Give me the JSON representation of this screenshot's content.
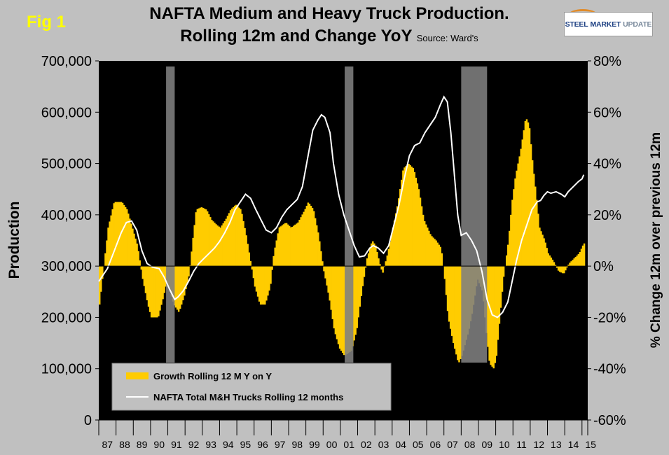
{
  "fig_label": "Fig 1",
  "title_line1": "NAFTA Medium and Heavy Truck Production.",
  "title_line2": "Rolling 12m and Change YoY",
  "source": "Source: Ward's",
  "logo": {
    "word1": "STEEL",
    "word2": "MARKET",
    "word3": "UPDATE"
  },
  "colors": {
    "bars": "#ffcc00",
    "line": "#ffffff",
    "plot_bg": "#000000",
    "page_bg": "#c0c0c0",
    "recession": "#808080"
  },
  "chart_data": {
    "type": "bar",
    "title": "NAFTA Medium and Heavy Truck Production. Rolling 12m and Change YoY",
    "left_axis": {
      "label": "Production",
      "range": [
        0,
        700000
      ],
      "ticks": [
        "0",
        "100,000",
        "200,000",
        "300,000",
        "400,000",
        "500,000",
        "600,000",
        "700,000"
      ]
    },
    "right_axis": {
      "label": "% Change 12m over previous 12m",
      "range": [
        -60,
        80
      ],
      "ticks": [
        "-60%",
        "-40%",
        "-20%",
        "0%",
        "20%",
        "40%",
        "60%",
        "80%"
      ]
    },
    "x_ticks": [
      "87",
      "88",
      "89",
      "90",
      "91",
      "92",
      "93",
      "94",
      "95",
      "96",
      "97",
      "98",
      "99",
      "00",
      "01",
      "02",
      "03",
      "04",
      "05",
      "06",
      "07",
      "08",
      "09",
      "10",
      "11",
      "12",
      "13",
      "14",
      "15"
    ],
    "recession_bands": [
      {
        "start": 1990.9,
        "end": 1991.4
      },
      {
        "start": 2001.25,
        "end": 2001.75
      },
      {
        "start": 2008.0,
        "end": 2009.5
      }
    ],
    "series": [
      {
        "name": "Growth Rolling 12 M Y on Y",
        "kind": "bar",
        "axis": "right",
        "points": [
          [
            1987.0,
            -15
          ],
          [
            1987.5,
            15
          ],
          [
            1987.85,
            25
          ],
          [
            1988.3,
            25
          ],
          [
            1988.6,
            22
          ],
          [
            1988.9,
            15
          ],
          [
            1989.2,
            8
          ],
          [
            1989.5,
            -5
          ],
          [
            1989.8,
            -15
          ],
          [
            1990.0,
            -20
          ],
          [
            1990.4,
            -20
          ],
          [
            1990.7,
            -12
          ],
          [
            1990.9,
            -6
          ],
          [
            1991.0,
            -8
          ],
          [
            1991.3,
            -15
          ],
          [
            1991.6,
            -18
          ],
          [
            1991.9,
            -12
          ],
          [
            1992.2,
            -3
          ],
          [
            1992.4,
            10
          ],
          [
            1992.6,
            22
          ],
          [
            1992.9,
            23
          ],
          [
            1993.2,
            22
          ],
          [
            1993.5,
            18
          ],
          [
            1993.8,
            16
          ],
          [
            1994.0,
            15
          ],
          [
            1994.3,
            18
          ],
          [
            1994.6,
            22
          ],
          [
            1994.9,
            24
          ],
          [
            1995.2,
            22
          ],
          [
            1995.5,
            12
          ],
          [
            1995.8,
            0
          ],
          [
            1996.0,
            -8
          ],
          [
            1996.3,
            -15
          ],
          [
            1996.6,
            -15
          ],
          [
            1996.9,
            -8
          ],
          [
            1997.1,
            5
          ],
          [
            1997.4,
            15
          ],
          [
            1997.8,
            17
          ],
          [
            1998.1,
            15
          ],
          [
            1998.5,
            17
          ],
          [
            1998.9,
            22
          ],
          [
            1999.1,
            25
          ],
          [
            1999.4,
            22
          ],
          [
            1999.7,
            12
          ],
          [
            2000.0,
            -2
          ],
          [
            2000.3,
            -12
          ],
          [
            2000.6,
            -25
          ],
          [
            2000.9,
            -32
          ],
          [
            2001.2,
            -35
          ],
          [
            2001.6,
            -33
          ],
          [
            2001.9,
            -25
          ],
          [
            2002.2,
            -10
          ],
          [
            2002.5,
            3
          ],
          [
            2002.8,
            10
          ],
          [
            2003.0,
            8
          ],
          [
            2003.2,
            2
          ],
          [
            2003.4,
            -3
          ],
          [
            2003.7,
            5
          ],
          [
            2004.0,
            15
          ],
          [
            2004.3,
            25
          ],
          [
            2004.6,
            38
          ],
          [
            2004.9,
            40
          ],
          [
            2005.2,
            38
          ],
          [
            2005.5,
            30
          ],
          [
            2005.8,
            18
          ],
          [
            2006.2,
            12
          ],
          [
            2006.5,
            10
          ],
          [
            2006.8,
            7
          ],
          [
            2007.0,
            -5
          ],
          [
            2007.2,
            -20
          ],
          [
            2007.5,
            -30
          ],
          [
            2007.8,
            -38
          ],
          [
            2008.0,
            -35
          ],
          [
            2008.2,
            -30
          ],
          [
            2008.4,
            -25
          ],
          [
            2008.6,
            -18
          ],
          [
            2008.9,
            -5
          ],
          [
            2009.2,
            -10
          ],
          [
            2009.4,
            -25
          ],
          [
            2009.6,
            -38
          ],
          [
            2009.85,
            -40
          ],
          [
            2010.0,
            -35
          ],
          [
            2010.2,
            -20
          ],
          [
            2010.4,
            -5
          ],
          [
            2010.7,
            10
          ],
          [
            2010.9,
            25
          ],
          [
            2011.1,
            35
          ],
          [
            2011.4,
            45
          ],
          [
            2011.7,
            58
          ],
          [
            2011.9,
            55
          ],
          [
            2012.1,
            40
          ],
          [
            2012.3,
            28
          ],
          [
            2012.5,
            15
          ],
          [
            2012.8,
            10
          ],
          [
            2013.0,
            5
          ],
          [
            2013.3,
            2
          ],
          [
            2013.6,
            -2
          ],
          [
            2013.9,
            -3
          ],
          [
            2014.2,
            1
          ],
          [
            2014.5,
            3
          ],
          [
            2014.8,
            5
          ],
          [
            2015.0,
            8
          ],
          [
            2015.1,
            9
          ]
        ]
      },
      {
        "name": "NAFTA Total M&H Trucks Rolling 12 months",
        "kind": "line",
        "axis": "left",
        "points": [
          [
            1987.0,
            270000
          ],
          [
            1987.5,
            295000
          ],
          [
            1987.9,
            330000
          ],
          [
            1988.3,
            365000
          ],
          [
            1988.6,
            385000
          ],
          [
            1988.9,
            388000
          ],
          [
            1989.2,
            370000
          ],
          [
            1989.5,
            330000
          ],
          [
            1989.8,
            305000
          ],
          [
            1990.1,
            298000
          ],
          [
            1990.5,
            295000
          ],
          [
            1990.8,
            278000
          ],
          [
            1991.1,
            255000
          ],
          [
            1991.4,
            235000
          ],
          [
            1991.6,
            240000
          ],
          [
            1991.9,
            252000
          ],
          [
            1992.2,
            270000
          ],
          [
            1992.5,
            290000
          ],
          [
            1992.8,
            305000
          ],
          [
            1993.1,
            315000
          ],
          [
            1993.4,
            325000
          ],
          [
            1993.7,
            335000
          ],
          [
            1994.0,
            348000
          ],
          [
            1994.3,
            365000
          ],
          [
            1994.6,
            385000
          ],
          [
            1994.9,
            410000
          ],
          [
            1995.2,
            425000
          ],
          [
            1995.5,
            440000
          ],
          [
            1995.8,
            432000
          ],
          [
            1996.1,
            410000
          ],
          [
            1996.4,
            390000
          ],
          [
            1996.7,
            370000
          ],
          [
            1997.0,
            365000
          ],
          [
            1997.3,
            375000
          ],
          [
            1997.6,
            395000
          ],
          [
            1997.9,
            410000
          ],
          [
            1998.2,
            420000
          ],
          [
            1998.5,
            430000
          ],
          [
            1998.8,
            455000
          ],
          [
            1999.1,
            510000
          ],
          [
            1999.4,
            565000
          ],
          [
            1999.7,
            585000
          ],
          [
            1999.9,
            595000
          ],
          [
            2000.1,
            590000
          ],
          [
            2000.4,
            560000
          ],
          [
            2000.6,
            500000
          ],
          [
            2000.9,
            440000
          ],
          [
            2001.2,
            400000
          ],
          [
            2001.5,
            370000
          ],
          [
            2001.8,
            340000
          ],
          [
            2002.1,
            318000
          ],
          [
            2002.4,
            320000
          ],
          [
            2002.7,
            335000
          ],
          [
            2002.9,
            340000
          ],
          [
            2003.2,
            335000
          ],
          [
            2003.5,
            325000
          ],
          [
            2003.8,
            340000
          ],
          [
            2004.1,
            380000
          ],
          [
            2004.4,
            420000
          ],
          [
            2004.7,
            470000
          ],
          [
            2005.0,
            515000
          ],
          [
            2005.3,
            535000
          ],
          [
            2005.6,
            540000
          ],
          [
            2005.9,
            560000
          ],
          [
            2006.2,
            575000
          ],
          [
            2006.5,
            590000
          ],
          [
            2006.8,
            615000
          ],
          [
            2007.0,
            630000
          ],
          [
            2007.2,
            620000
          ],
          [
            2007.4,
            560000
          ],
          [
            2007.6,
            480000
          ],
          [
            2007.8,
            400000
          ],
          [
            2008.0,
            360000
          ],
          [
            2008.3,
            365000
          ],
          [
            2008.6,
            350000
          ],
          [
            2008.9,
            330000
          ],
          [
            2009.2,
            290000
          ],
          [
            2009.5,
            235000
          ],
          [
            2009.8,
            205000
          ],
          [
            2010.1,
            200000
          ],
          [
            2010.4,
            210000
          ],
          [
            2010.7,
            230000
          ],
          [
            2010.9,
            262000
          ],
          [
            2011.2,
            310000
          ],
          [
            2011.5,
            350000
          ],
          [
            2011.8,
            380000
          ],
          [
            2012.1,
            410000
          ],
          [
            2012.4,
            425000
          ],
          [
            2012.6,
            428000
          ],
          [
            2012.8,
            438000
          ],
          [
            2013.0,
            445000
          ],
          [
            2013.2,
            442000
          ],
          [
            2013.5,
            445000
          ],
          [
            2013.8,
            440000
          ],
          [
            2014.0,
            435000
          ],
          [
            2014.2,
            445000
          ],
          [
            2014.5,
            455000
          ],
          [
            2014.8,
            465000
          ],
          [
            2015.0,
            470000
          ],
          [
            2015.1,
            478000
          ]
        ]
      }
    ],
    "legend_placement": "bottom-left"
  }
}
